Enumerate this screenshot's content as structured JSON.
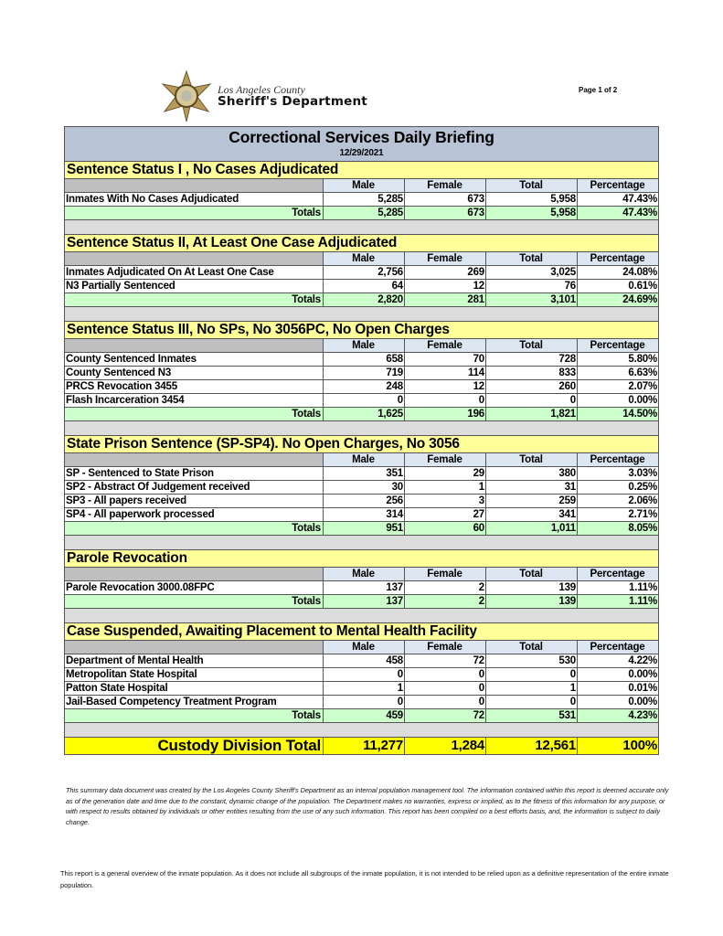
{
  "header": {
    "logo_line1": "Los Angeles County",
    "logo_line2": "Sheriff's Department",
    "page_number": "Page 1 of 2"
  },
  "report": {
    "title": "Correctional Services Daily Briefing",
    "date": "12/29/2021",
    "columns": [
      "Male",
      "Female",
      "Total",
      "Percentage"
    ],
    "totals_label": "Totals",
    "sections": [
      {
        "title": "Sentence Status I , No Cases Adjudicated",
        "rows": [
          [
            "Inmates With No Cases Adjudicated",
            "5,285",
            "673",
            "5,958",
            "47.43%"
          ]
        ],
        "totals": [
          "5,285",
          "673",
          "5,958",
          "47.43%"
        ]
      },
      {
        "title": "Sentence Status II, At Least One Case Adjudicated",
        "rows": [
          [
            "Inmates Adjudicated On At Least One Case",
            "2,756",
            "269",
            "3,025",
            "24.08%"
          ],
          [
            "N3 Partially Sentenced",
            "64",
            "12",
            "76",
            "0.61%"
          ]
        ],
        "totals": [
          "2,820",
          "281",
          "3,101",
          "24.69%"
        ]
      },
      {
        "title": "Sentence Status III, No SPs, No 3056PC, No Open Charges",
        "rows": [
          [
            "County Sentenced Inmates",
            "658",
            "70",
            "728",
            "5.80%"
          ],
          [
            "County Sentenced N3",
            "719",
            "114",
            "833",
            "6.63%"
          ],
          [
            "PRCS Revocation 3455",
            "248",
            "12",
            "260",
            "2.07%"
          ],
          [
            "Flash Incarceration 3454",
            "0",
            "0",
            "0",
            "0.00%"
          ]
        ],
        "totals": [
          "1,625",
          "196",
          "1,821",
          "14.50%"
        ]
      },
      {
        "title": "State Prison Sentence (SP-SP4). No Open Charges, No 3056",
        "rows": [
          [
            "SP - Sentenced to State Prison",
            "351",
            "29",
            "380",
            "3.03%"
          ],
          [
            "SP2 - Abstract Of Judgement received",
            "30",
            "1",
            "31",
            "0.25%"
          ],
          [
            "SP3 - All papers received",
            "256",
            "3",
            "259",
            "2.06%"
          ],
          [
            "SP4 - All paperwork processed",
            "314",
            "27",
            "341",
            "2.71%"
          ]
        ],
        "totals": [
          "951",
          "60",
          "1,011",
          "8.05%"
        ]
      },
      {
        "title": "Parole Revocation",
        "rows": [
          [
            "Parole Revocation 3000.08FPC",
            "137",
            "2",
            "139",
            "1.11%"
          ]
        ],
        "totals": [
          "137",
          "2",
          "139",
          "1.11%"
        ]
      },
      {
        "title": "Case Suspended, Awaiting Placement to Mental Health Facility",
        "rows": [
          [
            "Department of Mental Health",
            "458",
            "72",
            "530",
            "4.22%"
          ],
          [
            "Metropolitan State Hospital",
            "0",
            "0",
            "0",
            "0.00%"
          ],
          [
            "Patton State Hospital",
            "1",
            "0",
            "1",
            "0.01%"
          ],
          [
            "Jail-Based Competency Treatment Program",
            "0",
            "0",
            "0",
            "0.00%"
          ]
        ],
        "totals": [
          "459",
          "72",
          "531",
          "4.23%"
        ]
      }
    ],
    "grand_total": {
      "label": "Custody Division Total",
      "values": [
        "11,277",
        "1,284",
        "12,561",
        "100%"
      ]
    }
  },
  "disclaimer": "This summary data document was created by the Los Angeles County Sheriff's Department as an internal population management tool.  The information contained within this report is deemed accurate only as of the generation date and time due to the constant, dynamic change of the population.  The Department makes no warranties, express or implied, as to the fitness of this information for any purpose, or with respect to results obtained by individuals or other entities resulting from the use of any such information.  This report has been compiled on a best efforts basis, and, the information is subject to daily change.",
  "footnote": "This report is a general overview of the inmate population.  As it does not include all subgroups of the inmate population, it is not intended to be relied upon as a definitive representation of the entire inmate population.",
  "colors": {
    "title_bg": "#b8c4d6",
    "section_bg": "#ffff99",
    "totals_bg": "#ccffcc",
    "grand_total_bg": "#ffff00",
    "spacer_bg": "#dcdcdc"
  }
}
